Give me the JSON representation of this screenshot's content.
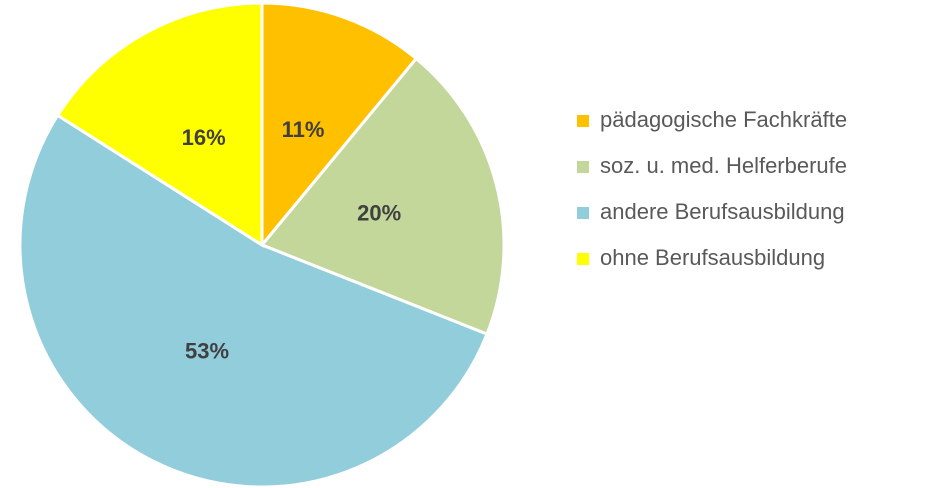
{
  "chart_data": {
    "type": "pie",
    "categories": [
      "pädagogische Fachkräfte",
      "soz. u. med. Helferberufe",
      "andere Berufsausbildung",
      "ohne Berufsausbildung"
    ],
    "values": [
      11,
      20,
      53,
      16
    ],
    "value_labels": [
      "11%",
      "20%",
      "53%",
      "16%"
    ],
    "colors": [
      "#FFC000",
      "#C4D79B",
      "#92CDDC",
      "#FFFF00"
    ],
    "legend": "right"
  }
}
